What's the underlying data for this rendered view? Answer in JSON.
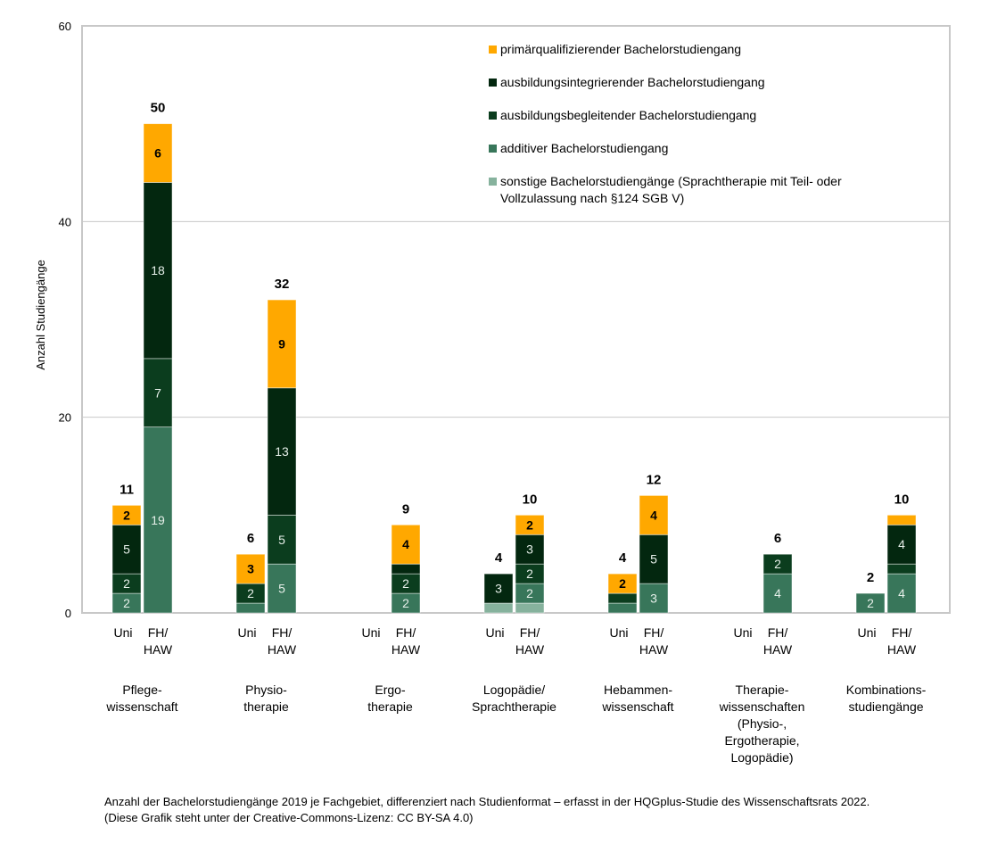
{
  "chart_data": {
    "type": "bar",
    "stacked": true,
    "ylabel": "Anzahl Studiengänge",
    "ylim": [
      0,
      60
    ],
    "yticks": [
      0,
      20,
      40,
      60
    ],
    "grid": true,
    "legend_position": "top-right",
    "series_order_bottom_to_top": [
      "sonstige",
      "additiv",
      "begleitend",
      "integrierend",
      "primaer"
    ],
    "legend": [
      {
        "key": "primaer",
        "label": "primärqualifizierender Bachelorstudiengang",
        "color": "#FFA800"
      },
      {
        "key": "integrierend",
        "label": "ausbildungsintegrierender Bachelorstudiengang",
        "color": "#03270F"
      },
      {
        "key": "begleitend",
        "label": "ausbildungsbegleitender Bachelorstudiengang",
        "color": "#0B3D1E"
      },
      {
        "key": "additiv",
        "label": "additiver Bachelorstudiengang",
        "color": "#38765A"
      },
      {
        "key": "sonstige",
        "label": "sonstige Bachelorstudiengänge (Sprachtherapie mit Teil- oder",
        "label2": "Vollzulassung nach §124 SGB V)",
        "color": "#86B29D"
      }
    ],
    "subcategories": [
      "Uni",
      "FH/\nHAW"
    ],
    "groups": [
      {
        "name": "Pflege-\nwissenschaft",
        "bars": [
          {
            "total": 11,
            "values": [
              0,
              2,
              2,
              5,
              2
            ]
          },
          {
            "total": 50,
            "values": [
              0,
              19,
              7,
              18,
              6
            ]
          }
        ]
      },
      {
        "name": "Physio-\ntherapie",
        "bars": [
          {
            "total": 6,
            "values": [
              0,
              1,
              2,
              0,
              3
            ]
          },
          {
            "total": 32,
            "values": [
              0,
              5,
              5,
              13,
              9
            ]
          }
        ]
      },
      {
        "name": "Ergo-\ntherapie",
        "bars": [
          {
            "total": null,
            "values": [
              0,
              0,
              0,
              0,
              0
            ]
          },
          {
            "total": 9,
            "values": [
              0,
              2,
              2,
              1,
              4
            ]
          }
        ]
      },
      {
        "name": "Logopädie/\nSprachtherapie",
        "bars": [
          {
            "total": 4,
            "values": [
              1,
              0,
              0,
              3,
              0
            ]
          },
          {
            "total": 10,
            "values": [
              1,
              2,
              2,
              3,
              2
            ]
          }
        ]
      },
      {
        "name": "Hebammen-\nwissenschaft",
        "bars": [
          {
            "total": 4,
            "values": [
              0,
              1,
              1,
              0,
              2
            ]
          },
          {
            "total": 12,
            "values": [
              0,
              3,
              0,
              5,
              4
            ]
          }
        ]
      },
      {
        "name": "Therapie-\nwissenschaften\n(Physio-,\nErgotherapie,\nLogopädie)",
        "bars": [
          {
            "total": null,
            "values": [
              0,
              0,
              0,
              0,
              0
            ]
          },
          {
            "total": 6,
            "values": [
              0,
              4,
              2,
              0,
              0
            ]
          }
        ]
      },
      {
        "name": "Kombinations-\nstudiengänge",
        "bars": [
          {
            "total": 2,
            "values": [
              0,
              2,
              0,
              0,
              0
            ]
          },
          {
            "total": 10,
            "values": [
              0,
              4,
              1,
              4,
              1
            ]
          }
        ]
      }
    ]
  },
  "caption": {
    "line1": "Anzahl der Bachelorstudiengänge 2019 je Fachgebiet, differenziert nach Studienformat – erfasst in der HQGplus-Studie des Wissenschaftsrats 2022.",
    "line2": "(Diese Grafik steht unter der Creative-Commons-Lizenz: CC BY-SA 4.0)"
  }
}
